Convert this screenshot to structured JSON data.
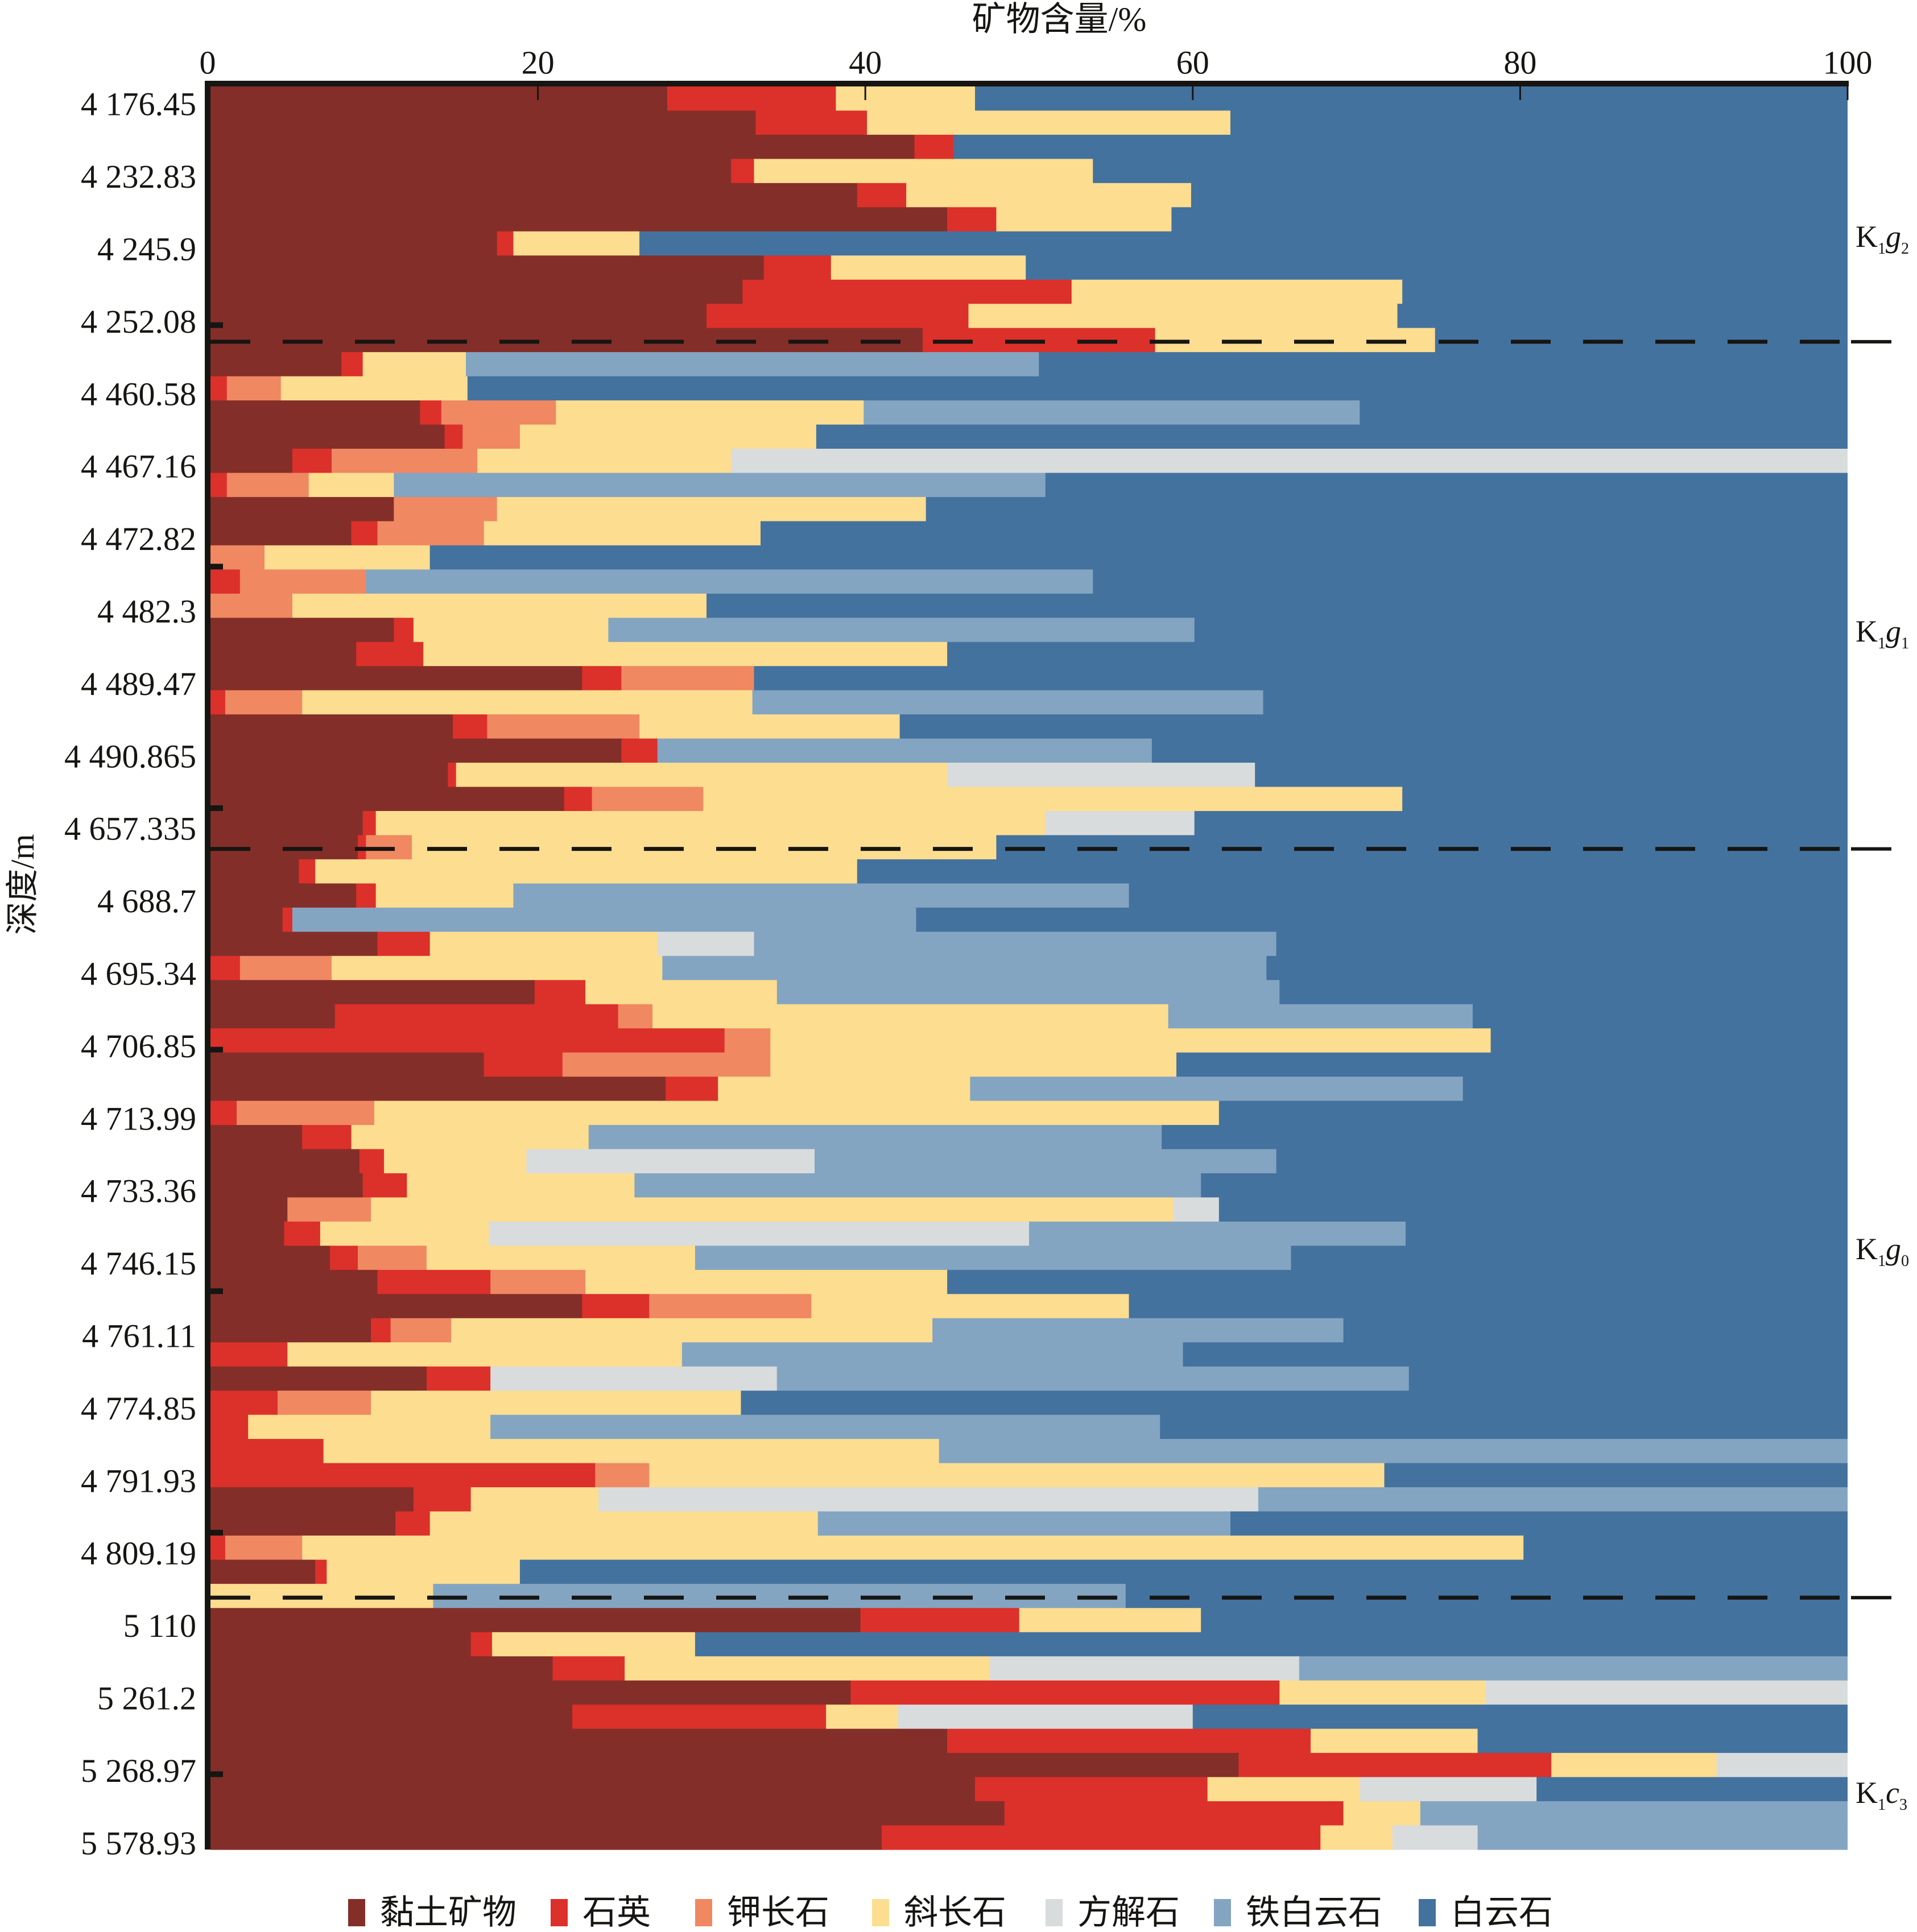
{
  "chart_data": {
    "type": "bar",
    "orientation": "horizontal",
    "stacked": true,
    "title": "",
    "xlabel": "矿物含量/%",
    "ylabel": "深度/m",
    "xlim": [
      0,
      100
    ],
    "x_ticks": [
      "0",
      "20",
      "40",
      "60",
      "80",
      "100"
    ],
    "x_tick_values": [
      0,
      20,
      40,
      60,
      80,
      100
    ],
    "x_axis_position": "top",
    "grid": false,
    "legend_position": "bottom",
    "categories": [
      "4 176.45",
      "",
      "",
      "4 232.83",
      "",
      "",
      "4 245.9",
      "",
      "",
      "4 252.08",
      "",
      "",
      "4 460.58",
      "",
      "",
      "4 467.16",
      "",
      "",
      "4 472.82",
      "",
      "",
      "4 482.3",
      "",
      "",
      "4 489.47",
      "",
      "",
      "4 490.865",
      "",
      "",
      "4 657.335",
      "",
      "",
      "4 688.7",
      "",
      "",
      "4 695.34",
      "",
      "",
      "4 706.85",
      "",
      "",
      "4 713.99",
      "",
      "",
      "4 733.36",
      "",
      "",
      "4 746.15",
      "",
      "",
      "4 761.11",
      "",
      "",
      "4 774.85",
      "",
      "",
      "4 791.93",
      "",
      "",
      "4 809.19",
      "",
      "",
      "5 110",
      "",
      "",
      "5 261.2",
      "",
      "",
      "5 268.97",
      "",
      "",
      "5 578.93"
    ],
    "series": [
      {
        "name": "黏土矿物",
        "color": "#842E29",
        "values": [
          27.9,
          33.3,
          43.0,
          31.8,
          39.5,
          45.0,
          17.5,
          33.8,
          32.5,
          30.3,
          43.5,
          8.0,
          0,
          12.8,
          14.3,
          5.0,
          0,
          11.2,
          8.6,
          0,
          0,
          0,
          11.2,
          8.9,
          22.7,
          0,
          14.8,
          25.1,
          14.5,
          21.6,
          9.3,
          9.0,
          5.4,
          8.9,
          4.4,
          10.2,
          0,
          19.8,
          7.6,
          0,
          16.7,
          27.8,
          0,
          5.6,
          9.1,
          9.3,
          4.7,
          4.5,
          7.3,
          10.2,
          22.7,
          9.8,
          0,
          13.2,
          0,
          0,
          0,
          0,
          12.4,
          11.3,
          0,
          6.4,
          0,
          39.7,
          15.9,
          20.9,
          39.1,
          22.1,
          45.0,
          62.8,
          46.7,
          48.5,
          41.0
        ]
      },
      {
        "name": "石英",
        "color": "#DC302B",
        "values": [
          10.3,
          6.8,
          2.4,
          1.4,
          3.0,
          3.0,
          1.0,
          4.1,
          20.1,
          16.0,
          14.2,
          1.3,
          1.0,
          1.3,
          1.1,
          2.4,
          1.0,
          0,
          1.6,
          0,
          1.8,
          0,
          1.2,
          4.1,
          2.4,
          0.9,
          2.1,
          2.2,
          0.5,
          1.7,
          0.8,
          0.5,
          1.0,
          1.2,
          0.6,
          3.2,
          1.8,
          3.1,
          17.3,
          31.4,
          4.8,
          3.2,
          1.6,
          3.0,
          1.5,
          2.7,
          0,
          2.2,
          1.7,
          6.9,
          4.1,
          1.2,
          4.7,
          3.9,
          4.1,
          2.3,
          6.9,
          23.5,
          3.5,
          2.1,
          0.9,
          0.7,
          0,
          9.7,
          1.3,
          4.4,
          26.2,
          15.5,
          22.2,
          19.1,
          14.2,
          20.7,
          26.8
        ]
      },
      {
        "name": "钾长石",
        "color": "#F08862",
        "values": [
          0,
          0,
          0,
          0,
          0,
          0,
          0,
          0,
          0,
          0,
          0,
          0,
          3.3,
          7.0,
          3.5,
          8.9,
          5.0,
          6.3,
          6.5,
          3.3,
          7.7,
          5.0,
          0,
          0,
          8.1,
          4.7,
          9.3,
          0,
          0,
          6.8,
          0,
          2.8,
          0,
          0,
          0,
          0,
          5.6,
          0,
          2.1,
          2.8,
          12.7,
          0,
          8.4,
          0,
          0,
          0,
          5.1,
          0,
          4.2,
          5.8,
          9.9,
          3.7,
          0,
          0,
          5.7,
          0,
          0,
          3.3,
          0,
          0,
          4.7,
          0,
          0,
          0,
          0,
          0,
          0,
          0,
          0,
          0,
          0,
          0,
          0
        ]
      },
      {
        "name": "斜长石",
        "color": "#FDDD8F",
        "values": [
          8.5,
          22.2,
          0,
          20.7,
          17.4,
          10.7,
          7.7,
          11.9,
          20.2,
          26.2,
          17.1,
          6.3,
          11.4,
          18.8,
          18.1,
          15.5,
          5.2,
          26.2,
          16.9,
          10.1,
          0,
          25.3,
          11.9,
          32.0,
          0,
          27.5,
          15.9,
          0,
          30.0,
          42.7,
          40.9,
          35.7,
          33.1,
          8.4,
          0,
          13.9,
          20.2,
          11.7,
          31.5,
          44.0,
          24.8,
          15.4,
          51.6,
          14.5,
          8.7,
          13.9,
          49.0,
          10.3,
          16.4,
          22.1,
          19.4,
          29.4,
          24.1,
          0,
          22.6,
          14.8,
          37.6,
          44.9,
          7.8,
          23.7,
          74.6,
          11.8,
          13.6,
          11.1,
          12.4,
          22.3,
          12.6,
          4.4,
          10.2,
          10.1,
          9.3,
          4.7,
          4.4
        ]
      },
      {
        "name": "方解石",
        "color": "#D9DCDD",
        "values": [
          0,
          0,
          0,
          0,
          0,
          0,
          0,
          0,
          0,
          0,
          0,
          0,
          0,
          0,
          0,
          68.2,
          0,
          0,
          0,
          0,
          0,
          0,
          0,
          0,
          0,
          0,
          0,
          0,
          18.8,
          0,
          9.1,
          0,
          0,
          0,
          0,
          5.9,
          0,
          0,
          0,
          0,
          0,
          0,
          0,
          0,
          17.6,
          0,
          2.8,
          33.0,
          0,
          0,
          0,
          0,
          0,
          17.5,
          0,
          0,
          0,
          0,
          40.3,
          0,
          0,
          0,
          0,
          0,
          0,
          18.9,
          22.1,
          18.0,
          0,
          8.0,
          10.8,
          0,
          5.2
        ]
      },
      {
        "name": "铁白云石",
        "color": "#84A5C2",
        "values": [
          0,
          0,
          0,
          0,
          0,
          0,
          0,
          0,
          0,
          0,
          0,
          35.0,
          0,
          30.3,
          0,
          0,
          39.8,
          0,
          0,
          0,
          44.4,
          0,
          35.8,
          0,
          0,
          31.2,
          0,
          30.2,
          0,
          0,
          0,
          0,
          0,
          37.6,
          38.1,
          31.9,
          36.9,
          30.7,
          18.6,
          0,
          0,
          30.1,
          0,
          35.0,
          28.2,
          34.6,
          0,
          23.0,
          36.4,
          0,
          0,
          25.1,
          30.6,
          38.6,
          0,
          40.9,
          55.5,
          0,
          36.0,
          25.2,
          0,
          0,
          42.3,
          0,
          0,
          33.5,
          0,
          0,
          0,
          0,
          0,
          26.1,
          22.6
        ]
      },
      {
        "name": "白云石",
        "color": "#44729E",
        "values": [
          53.3,
          37.7,
          54.6,
          46.1,
          40.1,
          41.3,
          73.8,
          50.2,
          27.2,
          27.5,
          25.2,
          49.4,
          84.3,
          29.8,
          63.0,
          0,
          49.0,
          56.3,
          66.4,
          86.6,
          46.1,
          69.7,
          39.9,
          55.0,
          66.8,
          35.7,
          57.9,
          42.5,
          36.2,
          27.2,
          39.9,
          52.0,
          60.5,
          43.9,
          56.9,
          34.9,
          35.5,
          34.7,
          22.9,
          21.8,
          41.0,
          23.5,
          38.4,
          41.9,
          34.9,
          39.5,
          38.4,
          27.0,
          34.0,
          55.0,
          43.9,
          30.8,
          40.6,
          26.8,
          67.6,
          42.0,
          0,
          28.3,
          0,
          37.7,
          19.8,
          81.1,
          44.1,
          39.5,
          70.4,
          0,
          0,
          40.0,
          22.6,
          0,
          19.0,
          0,
          0
        ]
      }
    ],
    "formations": [
      {
        "main": "K",
        "sub1": "1",
        "letter": "g",
        "sub2": "2",
        "sample_count": 11
      },
      {
        "main": "K",
        "sub1": "1",
        "letter": "g",
        "sub2": "1",
        "sample_count": 21
      },
      {
        "main": "K",
        "sub1": "1",
        "letter": "g",
        "sub2": "0",
        "sample_count": 31
      },
      {
        "main": "K",
        "sub1": "1",
        "letter": "c",
        "sub2": "3",
        "sample_count": 10
      }
    ],
    "axis_color": "#161512"
  }
}
